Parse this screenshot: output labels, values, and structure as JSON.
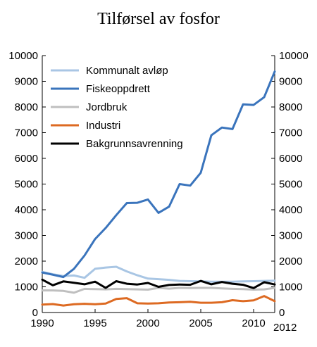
{
  "chart_data": {
    "type": "line",
    "title": "Tilførsel av fosfor",
    "xlabel": "",
    "ylabel": "",
    "x": [
      1990,
      1991,
      1992,
      1993,
      1994,
      1995,
      1996,
      1997,
      1998,
      1999,
      2000,
      2001,
      2002,
      2003,
      2004,
      2005,
      2006,
      2007,
      2008,
      2009,
      2010,
      2011,
      2012
    ],
    "xlim": [
      1990,
      2012
    ],
    "ylim": [
      0,
      10000
    ],
    "x_ticks": [
      1990,
      1995,
      2000,
      2005,
      2010,
      2012
    ],
    "x_tick_labels": [
      "1990",
      "1995",
      "2000",
      "2005",
      "2010",
      "2012"
    ],
    "y_ticks": [
      0,
      1000,
      2000,
      3000,
      4000,
      5000,
      6000,
      7000,
      8000,
      9000,
      10000
    ],
    "y_tick_labels": [
      "0",
      "1000",
      "2000",
      "3000",
      "4000",
      "5000",
      "6000",
      "7000",
      "8000",
      "9000",
      "10000"
    ],
    "legend_position": "top-left",
    "grid": false,
    "series": [
      {
        "name": "Kommunalt avløp",
        "color": "#a9c6e4",
        "values": [
          1580,
          1490,
          1420,
          1440,
          1350,
          1700,
          1750,
          1780,
          1600,
          1450,
          1320,
          1300,
          1270,
          1230,
          1220,
          1210,
          1200,
          1200,
          1200,
          1210,
          1220,
          1230,
          1240
        ]
      },
      {
        "name": "Fiskeoppdrett",
        "color": "#3a74bc",
        "values": [
          1560,
          1470,
          1380,
          1700,
          2220,
          2860,
          3290,
          3790,
          4260,
          4270,
          4400,
          3880,
          4120,
          5000,
          4940,
          5440,
          6900,
          7200,
          7140,
          8100,
          8080,
          8380,
          9380
        ]
      },
      {
        "name": "Jordbruk",
        "color": "#bfbfbf",
        "values": [
          860,
          860,
          840,
          770,
          920,
          910,
          900,
          920,
          910,
          900,
          890,
          960,
          930,
          960,
          950,
          960,
          960,
          940,
          920,
          910,
          890,
          900,
          960
        ]
      },
      {
        "name": "Industri",
        "color": "#dd6a22",
        "values": [
          310,
          330,
          270,
          320,
          340,
          320,
          350,
          530,
          560,
          360,
          350,
          360,
          390,
          400,
          420,
          380,
          380,
          400,
          480,
          440,
          470,
          640,
          440
        ]
      },
      {
        "name": "Bakgrunnsavrenning",
        "color": "#000000",
        "values": [
          1280,
          1060,
          1210,
          1160,
          1100,
          1200,
          960,
          1220,
          1120,
          1090,
          1150,
          1000,
          1070,
          1090,
          1080,
          1230,
          1100,
          1190,
          1120,
          1080,
          950,
          1180,
          1090
        ]
      }
    ]
  }
}
